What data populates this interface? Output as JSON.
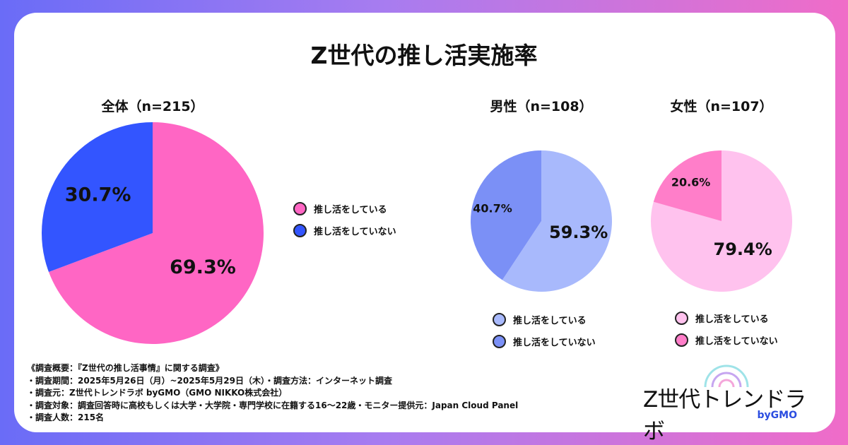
{
  "title": "Z世代の推し活実施率",
  "chart_data": [
    {
      "type": "pie",
      "title": "全体（n=215）",
      "labels": [
        "推し活をしている",
        "推し活をしていない"
      ],
      "values": [
        69.3,
        30.7
      ],
      "value_labels": [
        "69.3%",
        "30.7%"
      ],
      "colors": [
        "#ff66c4",
        "#3355ff"
      ],
      "legend": "right"
    },
    {
      "type": "pie",
      "title": "男性（n=108）",
      "labels": [
        "推し活をしている",
        "推し活をしていない"
      ],
      "values": [
        59.3,
        40.7
      ],
      "value_labels": [
        "59.3%",
        "40.7%"
      ],
      "colors": [
        "#a8b9fc",
        "#7b90f6"
      ],
      "legend": "bottom"
    },
    {
      "type": "pie",
      "title": "女性（n=107）",
      "labels": [
        "推し活をしている",
        "推し活をしていない"
      ],
      "values": [
        79.4,
        20.6
      ],
      "value_labels": [
        "79.4%",
        "20.6%"
      ],
      "colors": [
        "#ffc2ee",
        "#ff7ec9"
      ],
      "legend": "bottom"
    }
  ],
  "notes": [
    "《調査概要：『Z世代の推し活事情』に関する調査》",
    "・調査期間：2025年5月26日（月）~2025年5月29日（木）・調査方法：インターネット調査",
    "・調査元：Z世代トレンドラボ byGMO（GMO NIKKO株式会社）",
    "・調査対象：調査回答時に高校もしくは大学・大学院・専門学校に在籍する16〜22歳・モニター提供元：Japan Cloud Panel",
    "・調査人数：215名"
  ],
  "logo": {
    "text": "Z世代トレンドラボ",
    "by": "byGMO"
  }
}
